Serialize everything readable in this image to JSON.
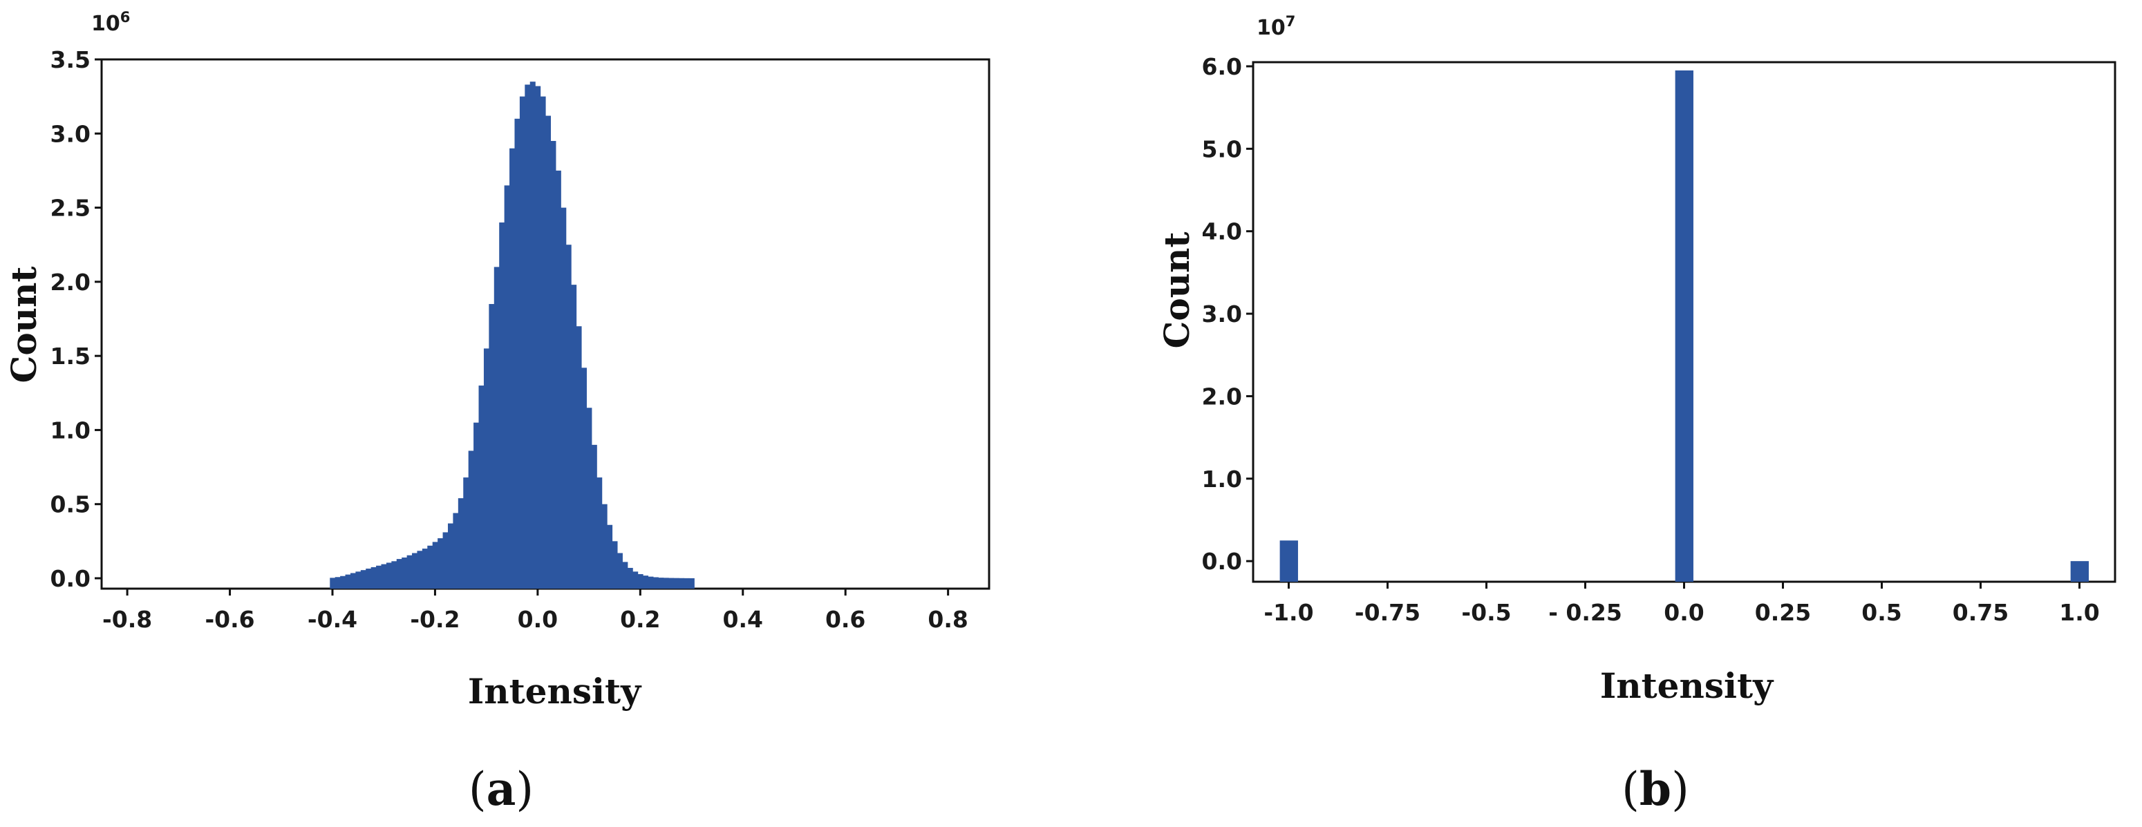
{
  "chart_data": [
    {
      "type": "bar",
      "panel_label": "a",
      "xlabel": "Intensity",
      "ylabel": "Count",
      "y_multiplier_base": "10",
      "y_multiplier_exp": "6",
      "xlim": [
        -0.85,
        0.88
      ],
      "ylim": [
        -0.07,
        3.5
      ],
      "xticks": [
        -0.8,
        -0.6,
        -0.4,
        -0.2,
        0.0,
        0.2,
        0.4,
        0.6,
        0.8
      ],
      "xtick_labels": [
        "-0.8",
        "-0.6",
        "-0.4",
        "-0.2",
        "0.0",
        "0.2",
        "0.4",
        "0.6",
        "0.8"
      ],
      "yticks": [
        0.0,
        0.5,
        1.0,
        1.5,
        2.0,
        2.5,
        3.0,
        3.5
      ],
      "ytick_labels": [
        "0.0",
        "0.5",
        "1.0",
        "1.5",
        "2.0",
        "2.5",
        "3.0",
        "3.5"
      ],
      "grid": false,
      "color": "#2c56a0",
      "bin_width": 0.01,
      "x": [
        -0.4,
        -0.39,
        -0.38,
        -0.37,
        -0.36,
        -0.35,
        -0.34,
        -0.33,
        -0.32,
        -0.31,
        -0.3,
        -0.29,
        -0.28,
        -0.27,
        -0.26,
        -0.25,
        -0.24,
        -0.23,
        -0.22,
        -0.21,
        -0.2,
        -0.19,
        -0.18,
        -0.17,
        -0.16,
        -0.15,
        -0.14,
        -0.13,
        -0.12,
        -0.11,
        -0.1,
        -0.09,
        -0.08,
        -0.07,
        -0.06,
        -0.05,
        -0.04,
        -0.03,
        -0.02,
        -0.01,
        0.0,
        0.01,
        0.02,
        0.03,
        0.04,
        0.05,
        0.06,
        0.07,
        0.08,
        0.09,
        0.1,
        0.11,
        0.12,
        0.13,
        0.14,
        0.15,
        0.16,
        0.17,
        0.18,
        0.19,
        0.2,
        0.21,
        0.22,
        0.23,
        0.24,
        0.25,
        0.26,
        0.27,
        0.28,
        0.29,
        0.3
      ],
      "values": [
        0.003,
        0.008,
        0.015,
        0.025,
        0.035,
        0.045,
        0.055,
        0.065,
        0.075,
        0.085,
        0.095,
        0.105,
        0.115,
        0.13,
        0.14,
        0.155,
        0.17,
        0.185,
        0.2,
        0.22,
        0.245,
        0.27,
        0.31,
        0.37,
        0.44,
        0.54,
        0.68,
        0.86,
        1.05,
        1.3,
        1.55,
        1.85,
        2.1,
        2.4,
        2.65,
        2.9,
        3.1,
        3.25,
        3.33,
        3.35,
        3.32,
        3.25,
        3.12,
        2.95,
        2.75,
        2.5,
        2.25,
        1.98,
        1.7,
        1.42,
        1.15,
        0.9,
        0.68,
        0.5,
        0.36,
        0.25,
        0.17,
        0.11,
        0.07,
        0.045,
        0.028,
        0.018,
        0.011,
        0.007,
        0.004,
        0.003,
        0.002,
        0.0015,
        0.001,
        0.0005,
        0.0003
      ]
    },
    {
      "type": "bar",
      "panel_label": "b",
      "xlabel": "Intensity",
      "ylabel": "Count",
      "y_multiplier_base": "10",
      "y_multiplier_exp": "7",
      "xlim": [
        -1.09,
        1.09
      ],
      "ylim": [
        -0.25,
        6.05
      ],
      "xticks": [
        -1.0,
        -0.75,
        -0.5,
        -0.25,
        0.0,
        0.25,
        0.5,
        0.75,
        1.0
      ],
      "xtick_labels": [
        "-1.0",
        "-0.75",
        "-0.5",
        "- 0.25",
        "0.0",
        "0.25",
        "0.5",
        "0.75",
        "1.0"
      ],
      "yticks": [
        0.0,
        1.0,
        2.0,
        3.0,
        4.0,
        5.0,
        6.0
      ],
      "ytick_labels": [
        "0.0",
        "1.0",
        "2.0",
        "3.0",
        "4.0",
        "5.0",
        "6.0"
      ],
      "grid": false,
      "color": "#2c56a0",
      "bin_width": 0.045,
      "x": [
        -1.0,
        0.0,
        1.0
      ],
      "values": [
        0.25,
        5.95,
        0.0
      ]
    }
  ]
}
